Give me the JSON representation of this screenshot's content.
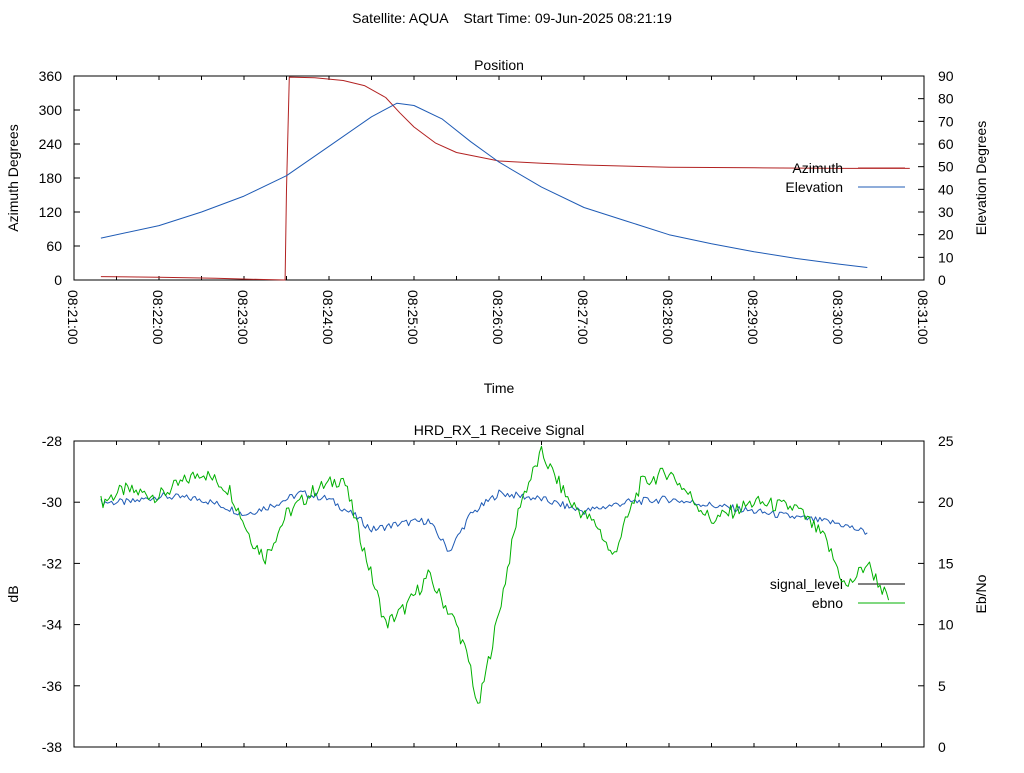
{
  "header": {
    "title": "Satellite: AQUA    Start Time: 09-Jun-2025 08:21:19"
  },
  "colors": {
    "azimuth": "#b22222",
    "elevation": "#1f5bb5",
    "signal_level": "#1f5bb5",
    "ebno": "#00b000",
    "axis": "#000000"
  },
  "chart_data": [
    {
      "type": "line",
      "title": "Position",
      "xlabel": "Time",
      "ylabel": "Azimuth Degrees",
      "y2label": "Elevation Degrees",
      "xlim": [
        "08:21:00",
        "08:31:00"
      ],
      "ylim": [
        0,
        360
      ],
      "y2lim": [
        0,
        90
      ],
      "x_ticks": [
        "08:21:00",
        "08:22:00",
        "08:23:00",
        "08:24:00",
        "08:25:00",
        "08:26:00",
        "08:27:00",
        "08:28:00",
        "08:29:00",
        "08:30:00",
        "08:31:00"
      ],
      "y_ticks": [
        "0",
        "60",
        "120",
        "180",
        "240",
        "300",
        "360"
      ],
      "y2_ticks": [
        "0",
        "10",
        "20",
        "30",
        "40",
        "50",
        "60",
        "70",
        "80",
        "90"
      ],
      "legend_position": "right",
      "grid": false,
      "series": [
        {
          "name": "Azimuth",
          "axis": "left",
          "points": [
            [
              "08:21:19",
              6
            ],
            [
              "08:22:00",
              5
            ],
            [
              "08:22:40",
              3
            ],
            [
              "08:23:10",
              1
            ],
            [
              "08:23:29",
              0
            ],
            [
              "08:23:30",
              160
            ],
            [
              "08:23:32",
              358
            ],
            [
              "08:23:50",
              357
            ],
            [
              "08:24:10",
              352
            ],
            [
              "08:24:25",
              343
            ],
            [
              "08:24:40",
              322
            ],
            [
              "08:24:50",
              295
            ],
            [
              "08:25:00",
              270
            ],
            [
              "08:25:15",
              242
            ],
            [
              "08:25:30",
              225
            ],
            [
              "08:26:00",
              210
            ],
            [
              "08:26:30",
              206
            ],
            [
              "08:27:00",
              203
            ],
            [
              "08:28:00",
              199
            ],
            [
              "08:29:00",
              198
            ],
            [
              "08:30:00",
              197
            ],
            [
              "08:30:50",
              197
            ]
          ]
        },
        {
          "name": "Elevation",
          "axis": "right",
          "points": [
            [
              "08:21:19",
              18.5
            ],
            [
              "08:22:00",
              24
            ],
            [
              "08:22:30",
              30
            ],
            [
              "08:23:00",
              37
            ],
            [
              "08:23:30",
              46
            ],
            [
              "08:24:00",
              59
            ],
            [
              "08:24:30",
              72
            ],
            [
              "08:24:48",
              78
            ],
            [
              "08:25:00",
              77
            ],
            [
              "08:25:20",
              71
            ],
            [
              "08:25:40",
              61
            ],
            [
              "08:26:00",
              52
            ],
            [
              "08:26:30",
              41
            ],
            [
              "08:27:00",
              32
            ],
            [
              "08:27:30",
              26
            ],
            [
              "08:28:00",
              20
            ],
            [
              "08:28:30",
              16
            ],
            [
              "08:29:00",
              12.5
            ],
            [
              "08:29:30",
              9.5
            ],
            [
              "08:30:00",
              7
            ],
            [
              "08:30:20",
              5.5
            ]
          ]
        }
      ]
    },
    {
      "type": "line",
      "title": "HRD_RX_1 Receive Signal",
      "xlabel": "",
      "ylabel": "dB",
      "y2label": "Eb/No",
      "xlim": [
        "08:21:00",
        "08:31:00"
      ],
      "ylim": [
        -38,
        -28
      ],
      "y2lim": [
        0,
        25
      ],
      "y_ticks": [
        "-38",
        "-36",
        "-34",
        "-32",
        "-30",
        "-28"
      ],
      "y2_ticks": [
        "0",
        "5",
        "10",
        "15",
        "20",
        "25"
      ],
      "legend_position": "right",
      "grid": false,
      "series": [
        {
          "name": "signal_level",
          "axis": "left",
          "points": [
            [
              "08:21:19",
              -30.0
            ],
            [
              "08:21:40",
              -30.0
            ],
            [
              "08:22:00",
              -29.8
            ],
            [
              "08:22:30",
              -29.9
            ],
            [
              "08:22:50",
              -30.2
            ],
            [
              "08:23:00",
              -30.4
            ],
            [
              "08:23:20",
              -30.1
            ],
            [
              "08:23:40",
              -29.7
            ],
            [
              "08:24:00",
              -29.9
            ],
            [
              "08:24:20",
              -30.5
            ],
            [
              "08:24:30",
              -30.9
            ],
            [
              "08:24:50",
              -30.7
            ],
            [
              "08:25:10",
              -30.6
            ],
            [
              "08:25:25",
              -31.6
            ],
            [
              "08:25:40",
              -30.4
            ],
            [
              "08:26:00",
              -29.7
            ],
            [
              "08:26:30",
              -29.9
            ],
            [
              "08:27:00",
              -30.3
            ],
            [
              "08:27:30",
              -30.0
            ],
            [
              "08:28:00",
              -29.9
            ],
            [
              "08:28:30",
              -30.1
            ],
            [
              "08:29:00",
              -30.3
            ],
            [
              "08:29:30",
              -30.5
            ],
            [
              "08:30:00",
              -30.7
            ],
            [
              "08:30:20",
              -31.0
            ]
          ]
        },
        {
          "name": "ebno",
          "axis": "right",
          "points": [
            [
              "08:21:19",
              20
            ],
            [
              "08:21:35",
              21
            ],
            [
              "08:22:00",
              20.5
            ],
            [
              "08:22:30",
              22.5
            ],
            [
              "08:22:50",
              21
            ],
            [
              "08:23:05",
              17
            ],
            [
              "08:23:15",
              15.5
            ],
            [
              "08:23:30",
              19
            ],
            [
              "08:23:50",
              21
            ],
            [
              "08:24:10",
              22
            ],
            [
              "08:24:25",
              16
            ],
            [
              "08:24:40",
              10
            ],
            [
              "08:24:55",
              11.5
            ],
            [
              "08:25:10",
              14
            ],
            [
              "08:25:30",
              10
            ],
            [
              "08:25:40",
              6.5
            ],
            [
              "08:25:45",
              3
            ],
            [
              "08:26:00",
              11
            ],
            [
              "08:26:15",
              20
            ],
            [
              "08:26:30",
              24
            ],
            [
              "08:26:50",
              20
            ],
            [
              "08:27:10",
              18
            ],
            [
              "08:27:20",
              15.5
            ],
            [
              "08:27:40",
              21.5
            ],
            [
              "08:28:00",
              22.5
            ],
            [
              "08:28:30",
              18.5
            ],
            [
              "08:29:00",
              20
            ],
            [
              "08:29:30",
              19.5
            ],
            [
              "08:29:50",
              17
            ],
            [
              "08:30:05",
              13
            ],
            [
              "08:30:20",
              15
            ],
            [
              "08:30:35",
              12
            ]
          ]
        }
      ]
    }
  ]
}
